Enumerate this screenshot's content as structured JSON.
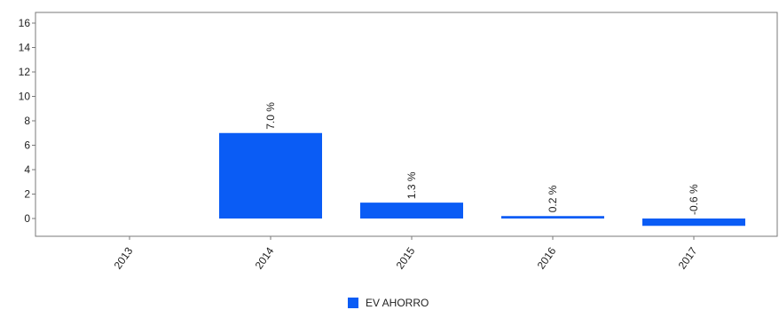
{
  "chart_data": {
    "type": "bar",
    "categories": [
      "2013",
      "2014",
      "2015",
      "2016",
      "2017"
    ],
    "series": [
      {
        "name": "EV AHORRO",
        "values": [
          null,
          7.0,
          1.3,
          0.2,
          -0.6
        ],
        "labels": [
          "",
          "7.0 %",
          "1.3 %",
          "0.2 %",
          "-0.6 %"
        ]
      }
    ],
    "yticks": [
      "0",
      "2",
      "4",
      "6",
      "8",
      "10",
      "12",
      "14",
      "16"
    ],
    "ylim": [
      -1.5,
      17
    ],
    "grid": false,
    "legend_position": "bottom",
    "bar_color": "#0a5cf5"
  }
}
